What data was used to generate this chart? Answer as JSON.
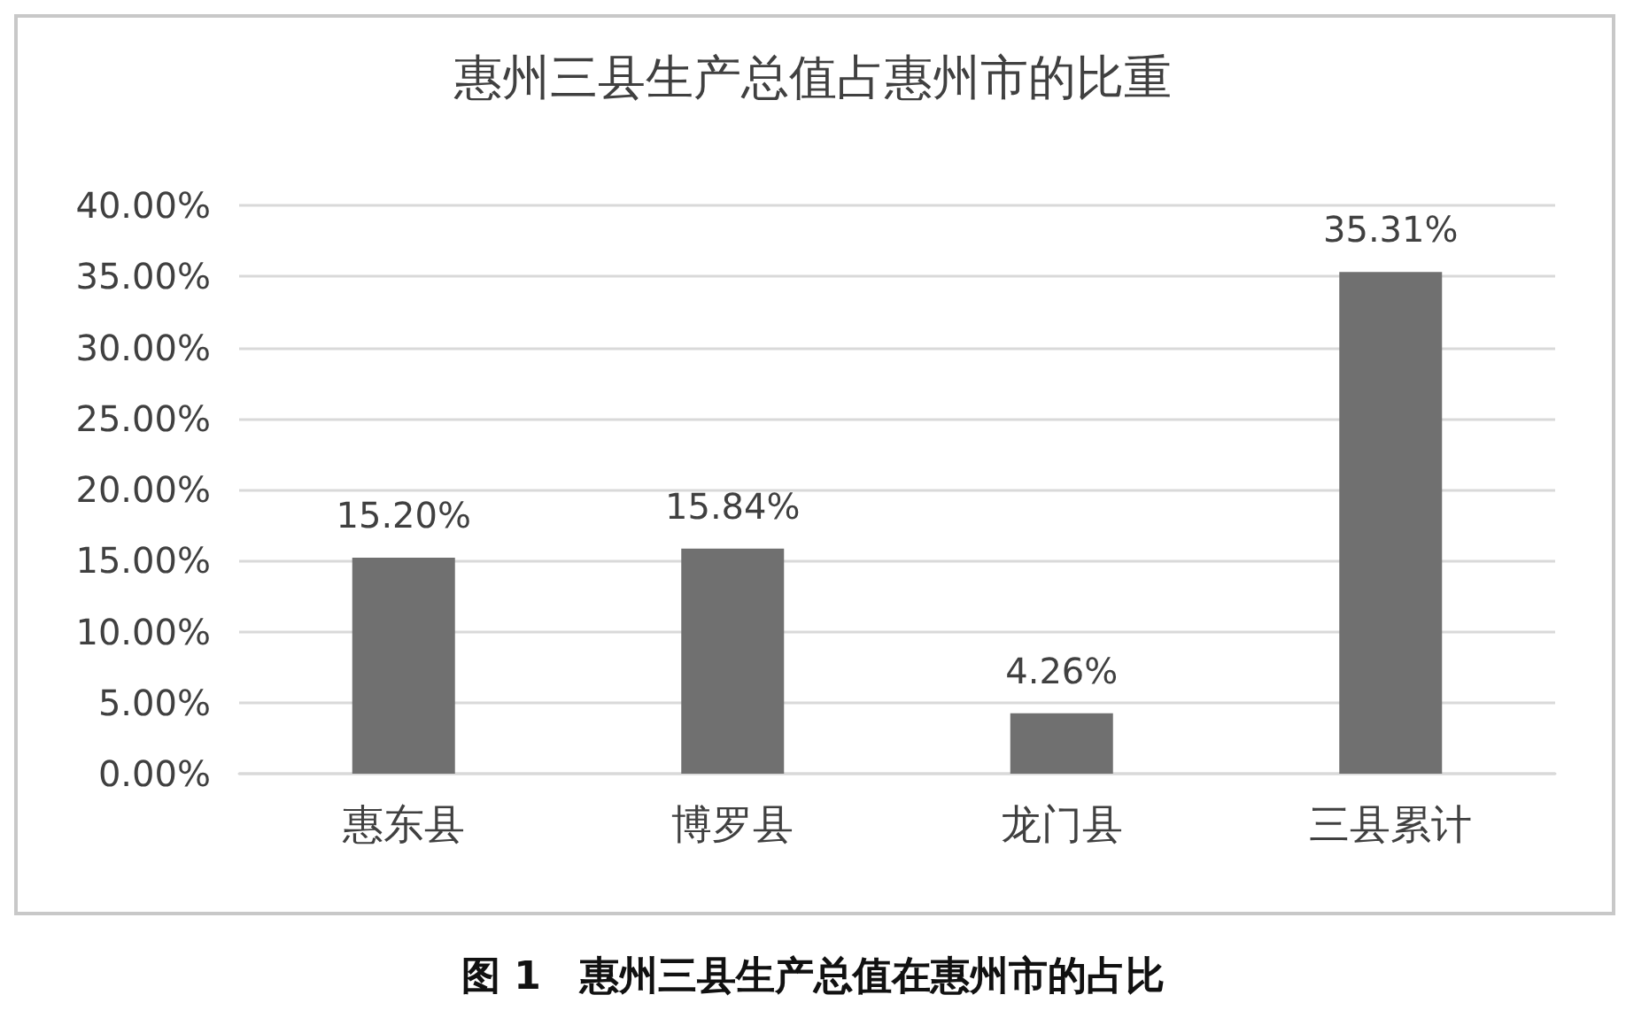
{
  "chart_data": {
    "type": "bar",
    "title": "惠州三县生产总值占惠州市的比重",
    "categories": [
      "惠东县",
      "博罗县",
      "龙门县",
      "三县累计"
    ],
    "values": [
      15.2,
      15.84,
      4.26,
      35.31
    ],
    "value_labels": [
      "15.20%",
      "15.84%",
      "4.26%",
      "35.31%"
    ],
    "color": "#707070",
    "ylim": [
      0,
      40
    ],
    "yticks": [
      {
        "value": 0,
        "label": "0.00%"
      },
      {
        "value": 5,
        "label": "5.00%"
      },
      {
        "value": 10,
        "label": "10.00%"
      },
      {
        "value": 15,
        "label": "15.00%"
      },
      {
        "value": 20,
        "label": "20.00%"
      },
      {
        "value": 25,
        "label": "25.00%"
      },
      {
        "value": 30,
        "label": "30.00%"
      },
      {
        "value": 35,
        "label": "35.00%"
      },
      {
        "value": 40,
        "label": "40.00%"
      }
    ],
    "grid": "y",
    "annotations": [
      "图 1　惠州三县生产总值在惠州市的占比"
    ]
  }
}
